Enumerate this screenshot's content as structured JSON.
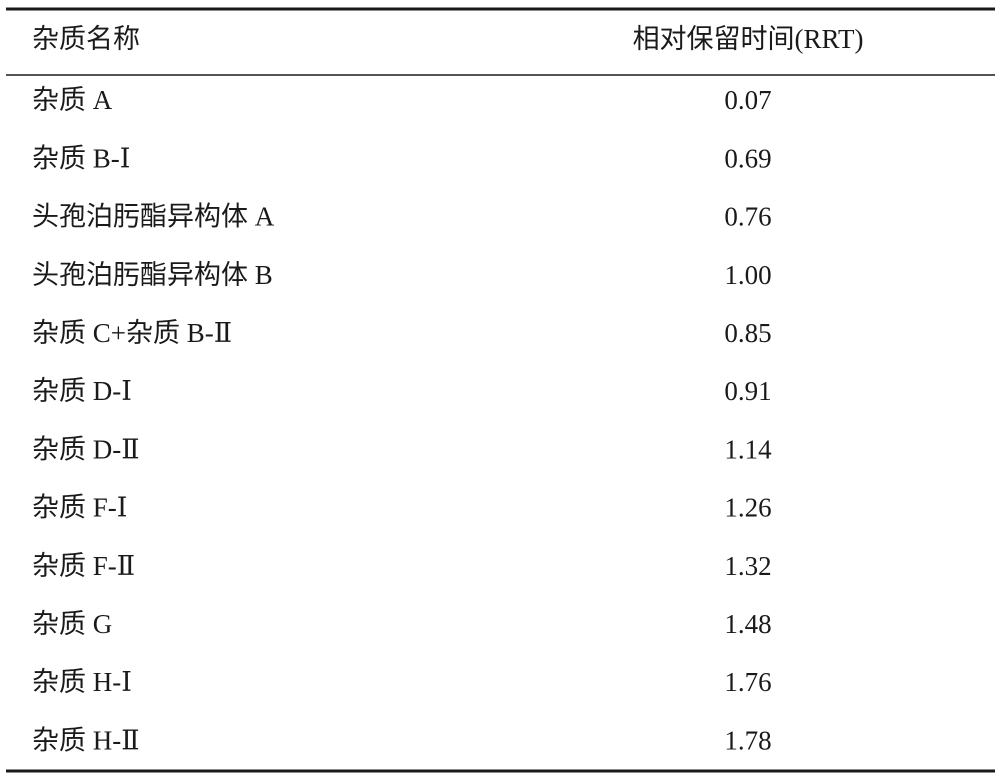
{
  "table": {
    "header": [
      "杂质名称",
      "相对保留时间(RRT)"
    ],
    "rows": [
      [
        "杂质 A",
        "0.07"
      ],
      [
        "杂质 B-Ⅰ",
        "0.69"
      ],
      [
        "头孢泊肟酯异构体 A",
        "0.76"
      ],
      [
        "头孢泊肟酯异构体 B",
        "1.00"
      ],
      [
        "杂质 C+杂质 B-Ⅱ",
        "0.85"
      ],
      [
        "杂质 D-Ⅰ",
        "0.91"
      ],
      [
        "杂质 D-Ⅱ",
        "1.14"
      ],
      [
        "杂质 F-Ⅰ",
        "1.26"
      ],
      [
        "杂质 F-Ⅱ",
        "1.32"
      ],
      [
        "杂质 G",
        "1.48"
      ],
      [
        "杂质 H-Ⅰ",
        "1.76"
      ],
      [
        "杂质 H-Ⅱ",
        "1.78"
      ]
    ]
  }
}
